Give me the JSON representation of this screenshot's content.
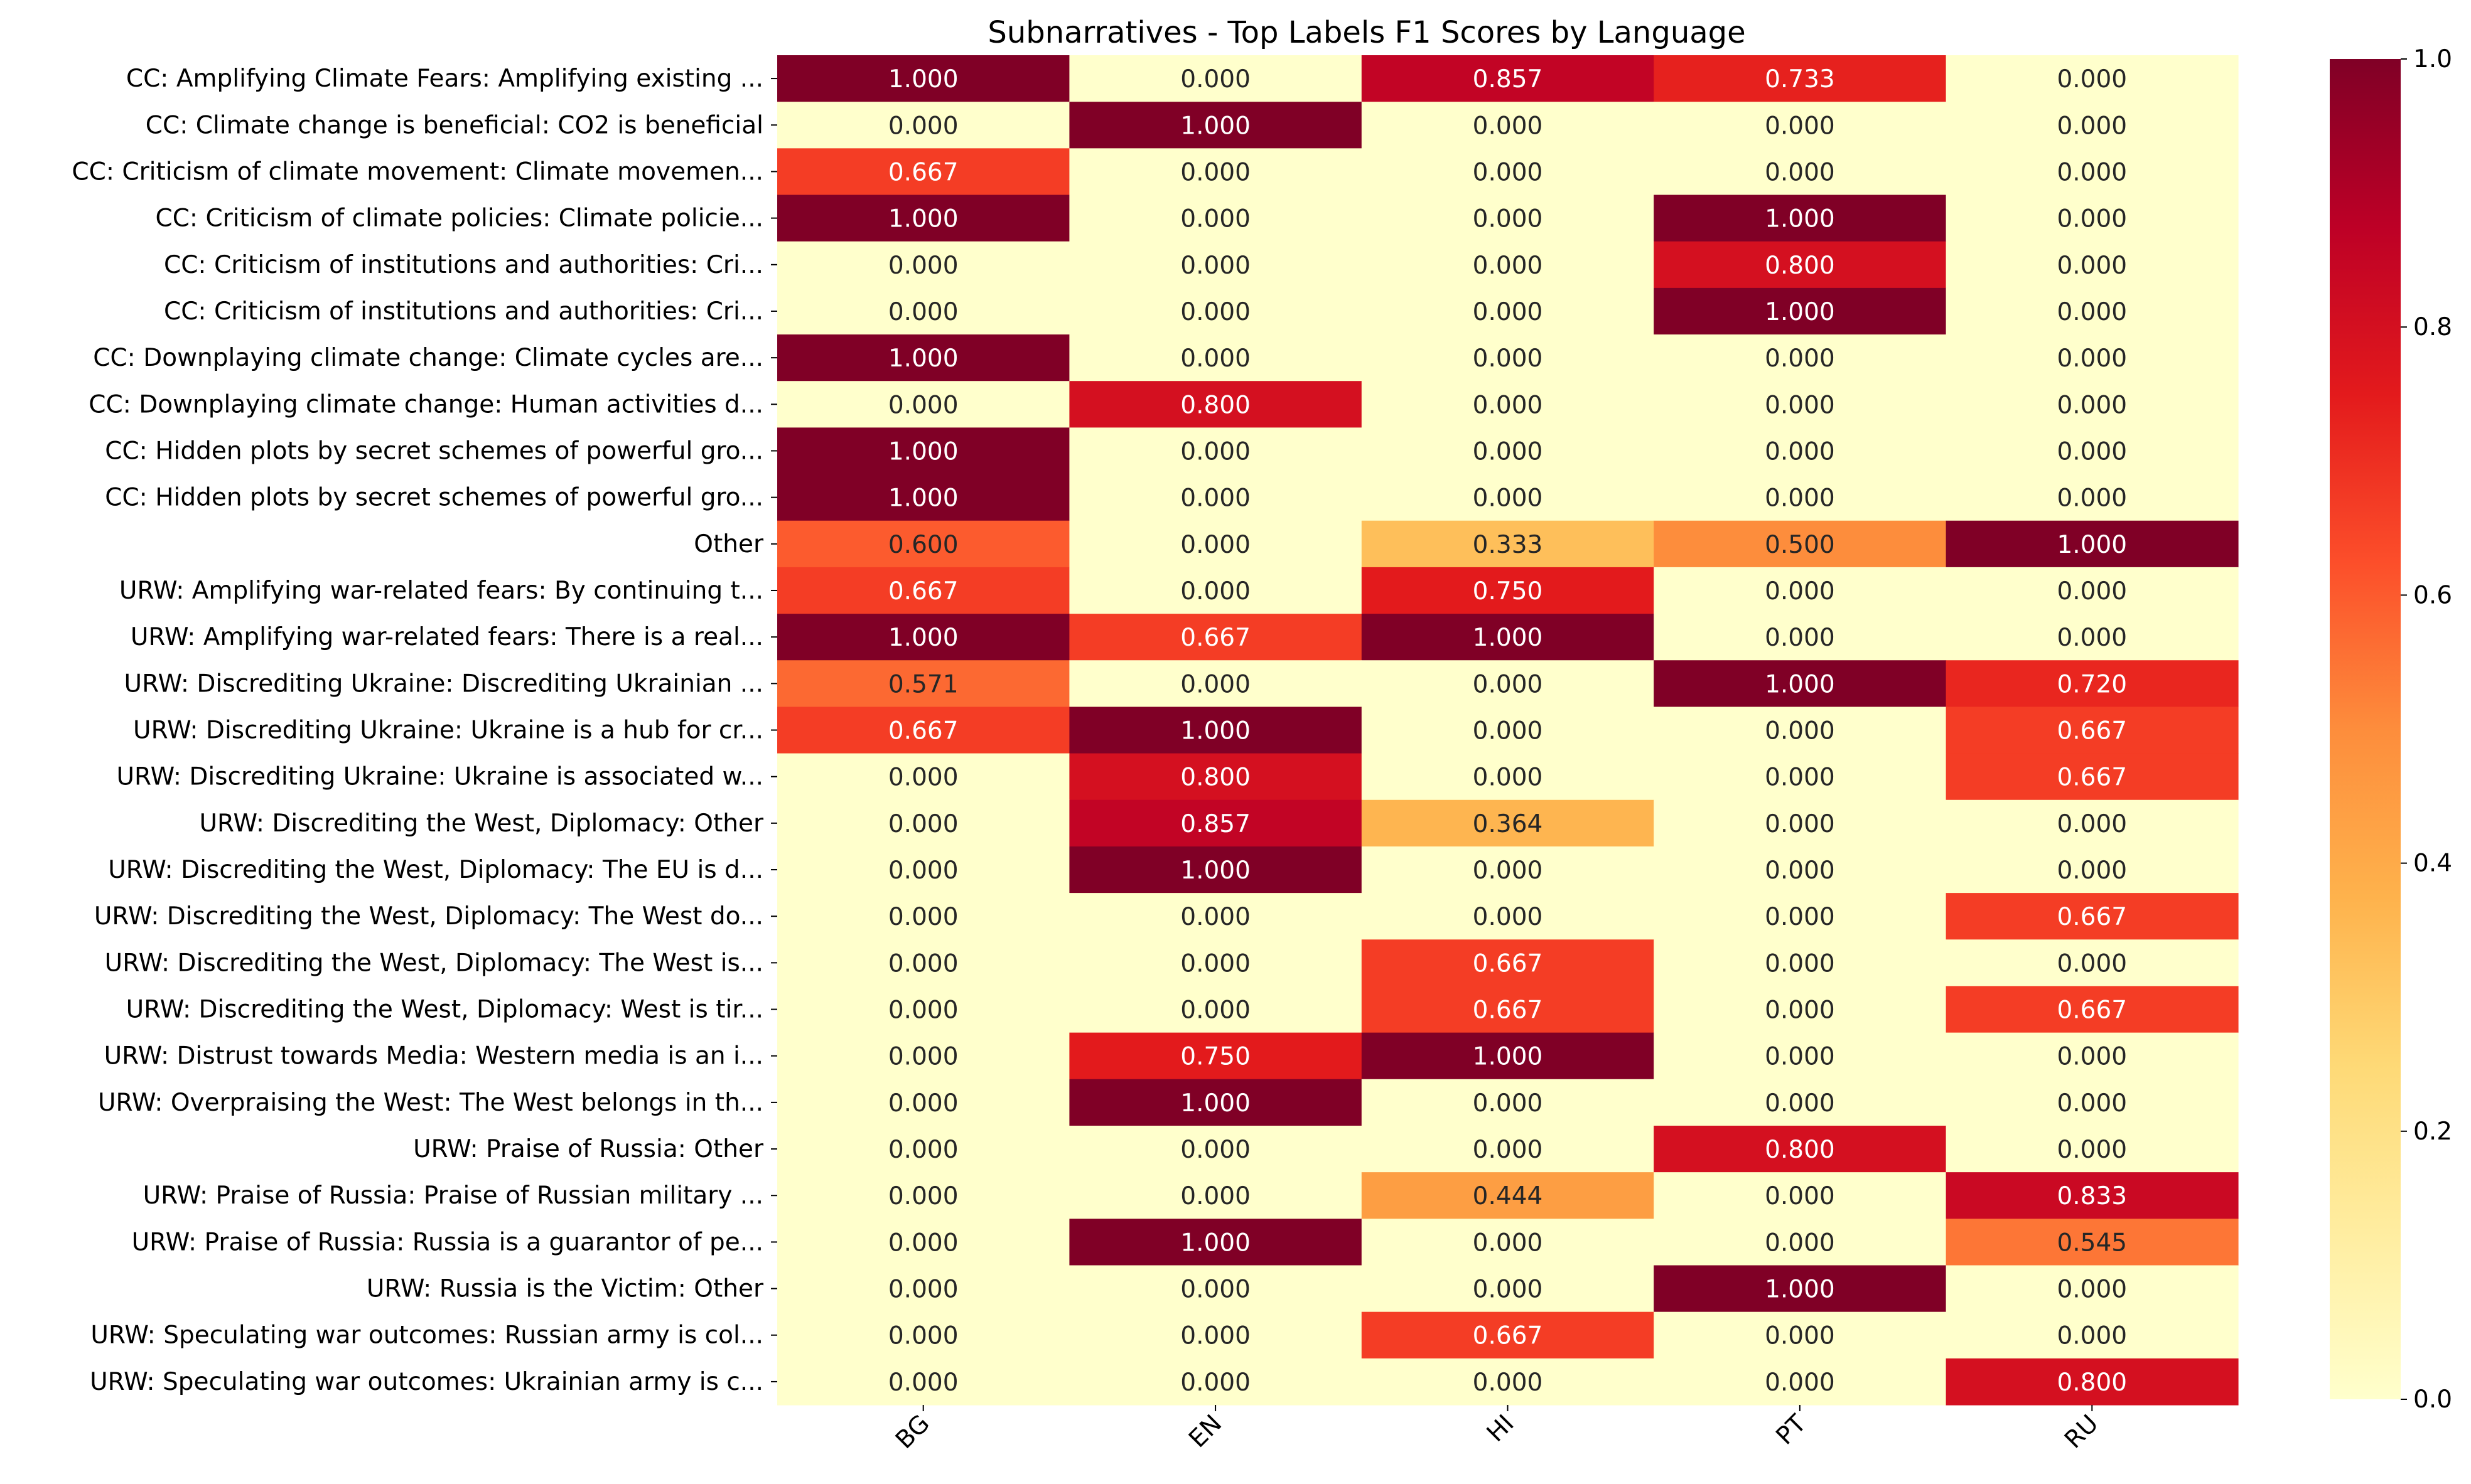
{
  "chart_data": {
    "type": "heatmap",
    "title": "Subnarratives - Top Labels F1 Scores by Language",
    "xlabel": "",
    "ylabel": "",
    "columns": [
      "BG",
      "EN",
      "HI",
      "PT",
      "RU"
    ],
    "rows": [
      "CC: Amplifying Climate Fears: Amplifying existing ...",
      "CC: Climate change is beneficial: CO2 is beneficial",
      "CC: Criticism of climate movement: Climate movemen...",
      "CC: Criticism of climate policies: Climate policie...",
      "CC: Criticism of institutions and authorities: Cri...",
      "CC: Criticism of institutions and authorities: Cri...",
      "CC: Downplaying climate change: Climate cycles are...",
      "CC: Downplaying climate change: Human activities d...",
      "CC: Hidden plots by secret schemes of powerful gro...",
      "CC: Hidden plots by secret schemes of powerful gro...",
      "Other",
      "URW: Amplifying war-related fears: By continuing t...",
      "URW: Amplifying war-related fears: There is a real...",
      "URW: Discrediting Ukraine: Discrediting Ukrainian ...",
      "URW: Discrediting Ukraine: Ukraine is a hub for cr...",
      "URW: Discrediting Ukraine: Ukraine is associated w...",
      "URW: Discrediting the West, Diplomacy: Other",
      "URW: Discrediting the West, Diplomacy: The EU is d...",
      "URW: Discrediting the West, Diplomacy: The West do...",
      "URW: Discrediting the West, Diplomacy: The West is...",
      "URW: Discrediting the West, Diplomacy: West is tir...",
      "URW: Distrust towards Media: Western media is an i...",
      "URW: Overpraising the West: The West belongs in th...",
      "URW: Praise of Russia: Other",
      "URW: Praise of Russia: Praise of Russian military ...",
      "URW: Praise of Russia: Russia is a guarantor of pe...",
      "URW: Russia is the Victim: Other",
      "URW: Speculating war outcomes: Russian army is col...",
      "URW: Speculating war outcomes: Ukrainian army is c..."
    ],
    "values": [
      [
        1.0,
        0.0,
        0.857,
        0.733,
        0.0
      ],
      [
        0.0,
        1.0,
        0.0,
        0.0,
        0.0
      ],
      [
        0.667,
        0.0,
        0.0,
        0.0,
        0.0
      ],
      [
        1.0,
        0.0,
        0.0,
        1.0,
        0.0
      ],
      [
        0.0,
        0.0,
        0.0,
        0.8,
        0.0
      ],
      [
        0.0,
        0.0,
        0.0,
        1.0,
        0.0
      ],
      [
        1.0,
        0.0,
        0.0,
        0.0,
        0.0
      ],
      [
        0.0,
        0.8,
        0.0,
        0.0,
        0.0
      ],
      [
        1.0,
        0.0,
        0.0,
        0.0,
        0.0
      ],
      [
        1.0,
        0.0,
        0.0,
        0.0,
        0.0
      ],
      [
        0.6,
        0.0,
        0.333,
        0.5,
        1.0
      ],
      [
        0.667,
        0.0,
        0.75,
        0.0,
        0.0
      ],
      [
        1.0,
        0.667,
        1.0,
        0.0,
        0.0
      ],
      [
        0.571,
        0.0,
        0.0,
        1.0,
        0.72
      ],
      [
        0.667,
        1.0,
        0.0,
        0.0,
        0.667
      ],
      [
        0.0,
        0.8,
        0.0,
        0.0,
        0.667
      ],
      [
        0.0,
        0.857,
        0.364,
        0.0,
        0.0
      ],
      [
        0.0,
        1.0,
        0.0,
        0.0,
        0.0
      ],
      [
        0.0,
        0.0,
        0.0,
        0.0,
        0.667
      ],
      [
        0.0,
        0.0,
        0.667,
        0.0,
        0.0
      ],
      [
        0.0,
        0.0,
        0.667,
        0.0,
        0.667
      ],
      [
        0.0,
        0.75,
        1.0,
        0.0,
        0.0
      ],
      [
        0.0,
        1.0,
        0.0,
        0.0,
        0.0
      ],
      [
        0.0,
        0.0,
        0.0,
        0.8,
        0.0
      ],
      [
        0.0,
        0.0,
        0.444,
        0.0,
        0.833
      ],
      [
        0.0,
        1.0,
        0.0,
        0.0,
        0.545
      ],
      [
        0.0,
        0.0,
        0.0,
        1.0,
        0.0
      ],
      [
        0.0,
        0.0,
        0.667,
        0.0,
        0.0
      ],
      [
        0.0,
        0.0,
        0.0,
        0.0,
        0.8
      ]
    ],
    "value_format": "0.000",
    "colormap": "YlOrRd",
    "colormap_stops": [
      "#ffffcc",
      "#ffeda0",
      "#fed976",
      "#feb24c",
      "#fd8d3c",
      "#fc4e2a",
      "#e31a1c",
      "#bd0026",
      "#800026"
    ],
    "vmin": 0.0,
    "vmax": 1.0,
    "colorbar": {
      "ticks": [
        0.0,
        0.2,
        0.4,
        0.6,
        0.8,
        1.0
      ],
      "tick_labels": [
        "0.0",
        "0.2",
        "0.4",
        "0.6",
        "0.8",
        "1.0"
      ],
      "placement": "right"
    },
    "x_tick_rotation": 45,
    "grid": false
  }
}
